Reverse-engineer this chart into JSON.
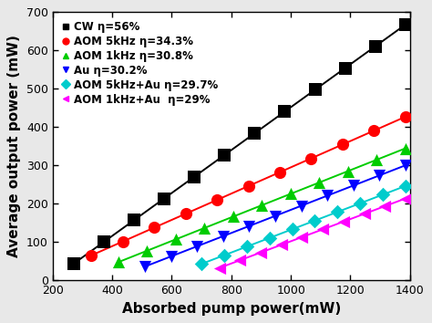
{
  "title": "",
  "xlabel": "Absorbed pump power(mW)",
  "ylabel": "Average output power (mW)",
  "xlim": [
    200,
    1400
  ],
  "ylim": [
    0,
    700
  ],
  "xticks": [
    200,
    400,
    600,
    800,
    1000,
    1200,
    1400
  ],
  "yticks": [
    0,
    100,
    200,
    300,
    400,
    500,
    600,
    700
  ],
  "series": [
    {
      "label": "CW η=56%",
      "color": "#000000",
      "marker": "s",
      "marker_size": 6,
      "slope": 0.56,
      "intercept": -108,
      "x_start": 270,
      "x_end": 1385,
      "n_pts": 12
    },
    {
      "label": "AOM 5kHz η=34.3%",
      "color": "#ff0000",
      "marker": "o",
      "marker_size": 6,
      "slope": 0.343,
      "intercept": -48,
      "x_start": 330,
      "x_end": 1385,
      "n_pts": 11
    },
    {
      "label": "AOM 1kHz η=30.8%",
      "color": "#00cc00",
      "marker": "^",
      "marker_size": 6,
      "slope": 0.308,
      "intercept": -82,
      "x_start": 420,
      "x_end": 1385,
      "n_pts": 11
    },
    {
      "label": "Au η=30.2%",
      "color": "#0000ff",
      "marker": "v",
      "marker_size": 6,
      "slope": 0.302,
      "intercept": -118,
      "x_start": 510,
      "x_end": 1385,
      "n_pts": 11
    },
    {
      "label": "AOM 5kHz+Au η=29.7%",
      "color": "#00cccc",
      "marker": "D",
      "marker_size": 5,
      "slope": 0.297,
      "intercept": -165,
      "x_start": 700,
      "x_end": 1385,
      "n_pts": 10
    },
    {
      "label": "AOM 1kHz+Au  η=29%",
      "color": "#ff00ff",
      "marker": "<",
      "marker_size": 6,
      "slope": 0.29,
      "intercept": -188,
      "x_start": 760,
      "x_end": 1385,
      "n_pts": 10
    }
  ],
  "legend_fontsize": 8.5,
  "axis_label_fontsize": 11,
  "tick_fontsize": 9,
  "linewidth": 1.4,
  "fig_bg": "#e8e8e8",
  "plot_bg": "#ffffff"
}
